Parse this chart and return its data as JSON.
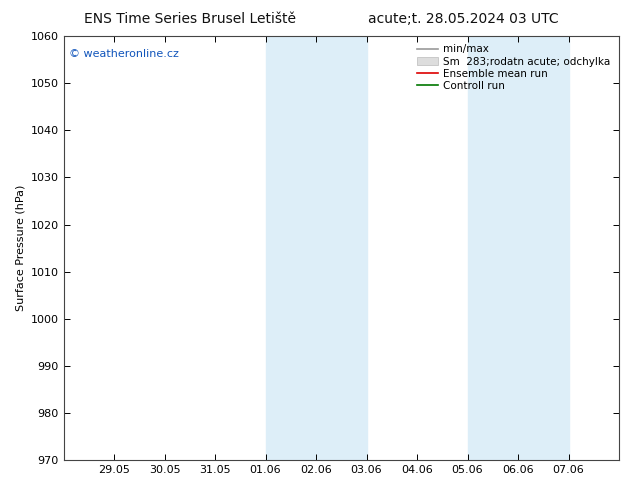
{
  "title_left": "ENS Time Series Brusel Letiště",
  "title_right": "acute;t. 28.05.2024 03 UTC",
  "ylabel": "Surface Pressure (hPa)",
  "ylim": [
    970,
    1060
  ],
  "yticks": [
    970,
    980,
    990,
    1000,
    1010,
    1020,
    1030,
    1040,
    1050,
    1060
  ],
  "xtick_labels": [
    "29.05",
    "30.05",
    "31.05",
    "01.06",
    "02.06",
    "03.06",
    "04.06",
    "05.06",
    "06.06",
    "07.06"
  ],
  "xtick_positions": [
    1,
    2,
    3,
    4,
    5,
    6,
    7,
    8,
    9,
    10
  ],
  "xlim": [
    0,
    11
  ],
  "shade_bands": [
    {
      "start": 4,
      "end": 6
    },
    {
      "start": 8,
      "end": 10
    }
  ],
  "shade_color": "#ddeef8",
  "watermark": "© weatheronline.cz",
  "watermark_color": "#1155bb",
  "legend_entries": [
    {
      "label": "min/max",
      "color": "#999999",
      "lw": 1.2
    },
    {
      "label": "Sm  283;rodatn acute; odchylka",
      "color": "#cccccc",
      "lw": 6
    },
    {
      "label": "Ensemble mean run",
      "color": "#dd0000",
      "lw": 1.2
    },
    {
      "label": "Controll run",
      "color": "#007700",
      "lw": 1.2
    }
  ],
  "bg_color": "#ffffff",
  "title_fontsize": 10,
  "label_fontsize": 8,
  "tick_fontsize": 8,
  "legend_fontsize": 7.5
}
